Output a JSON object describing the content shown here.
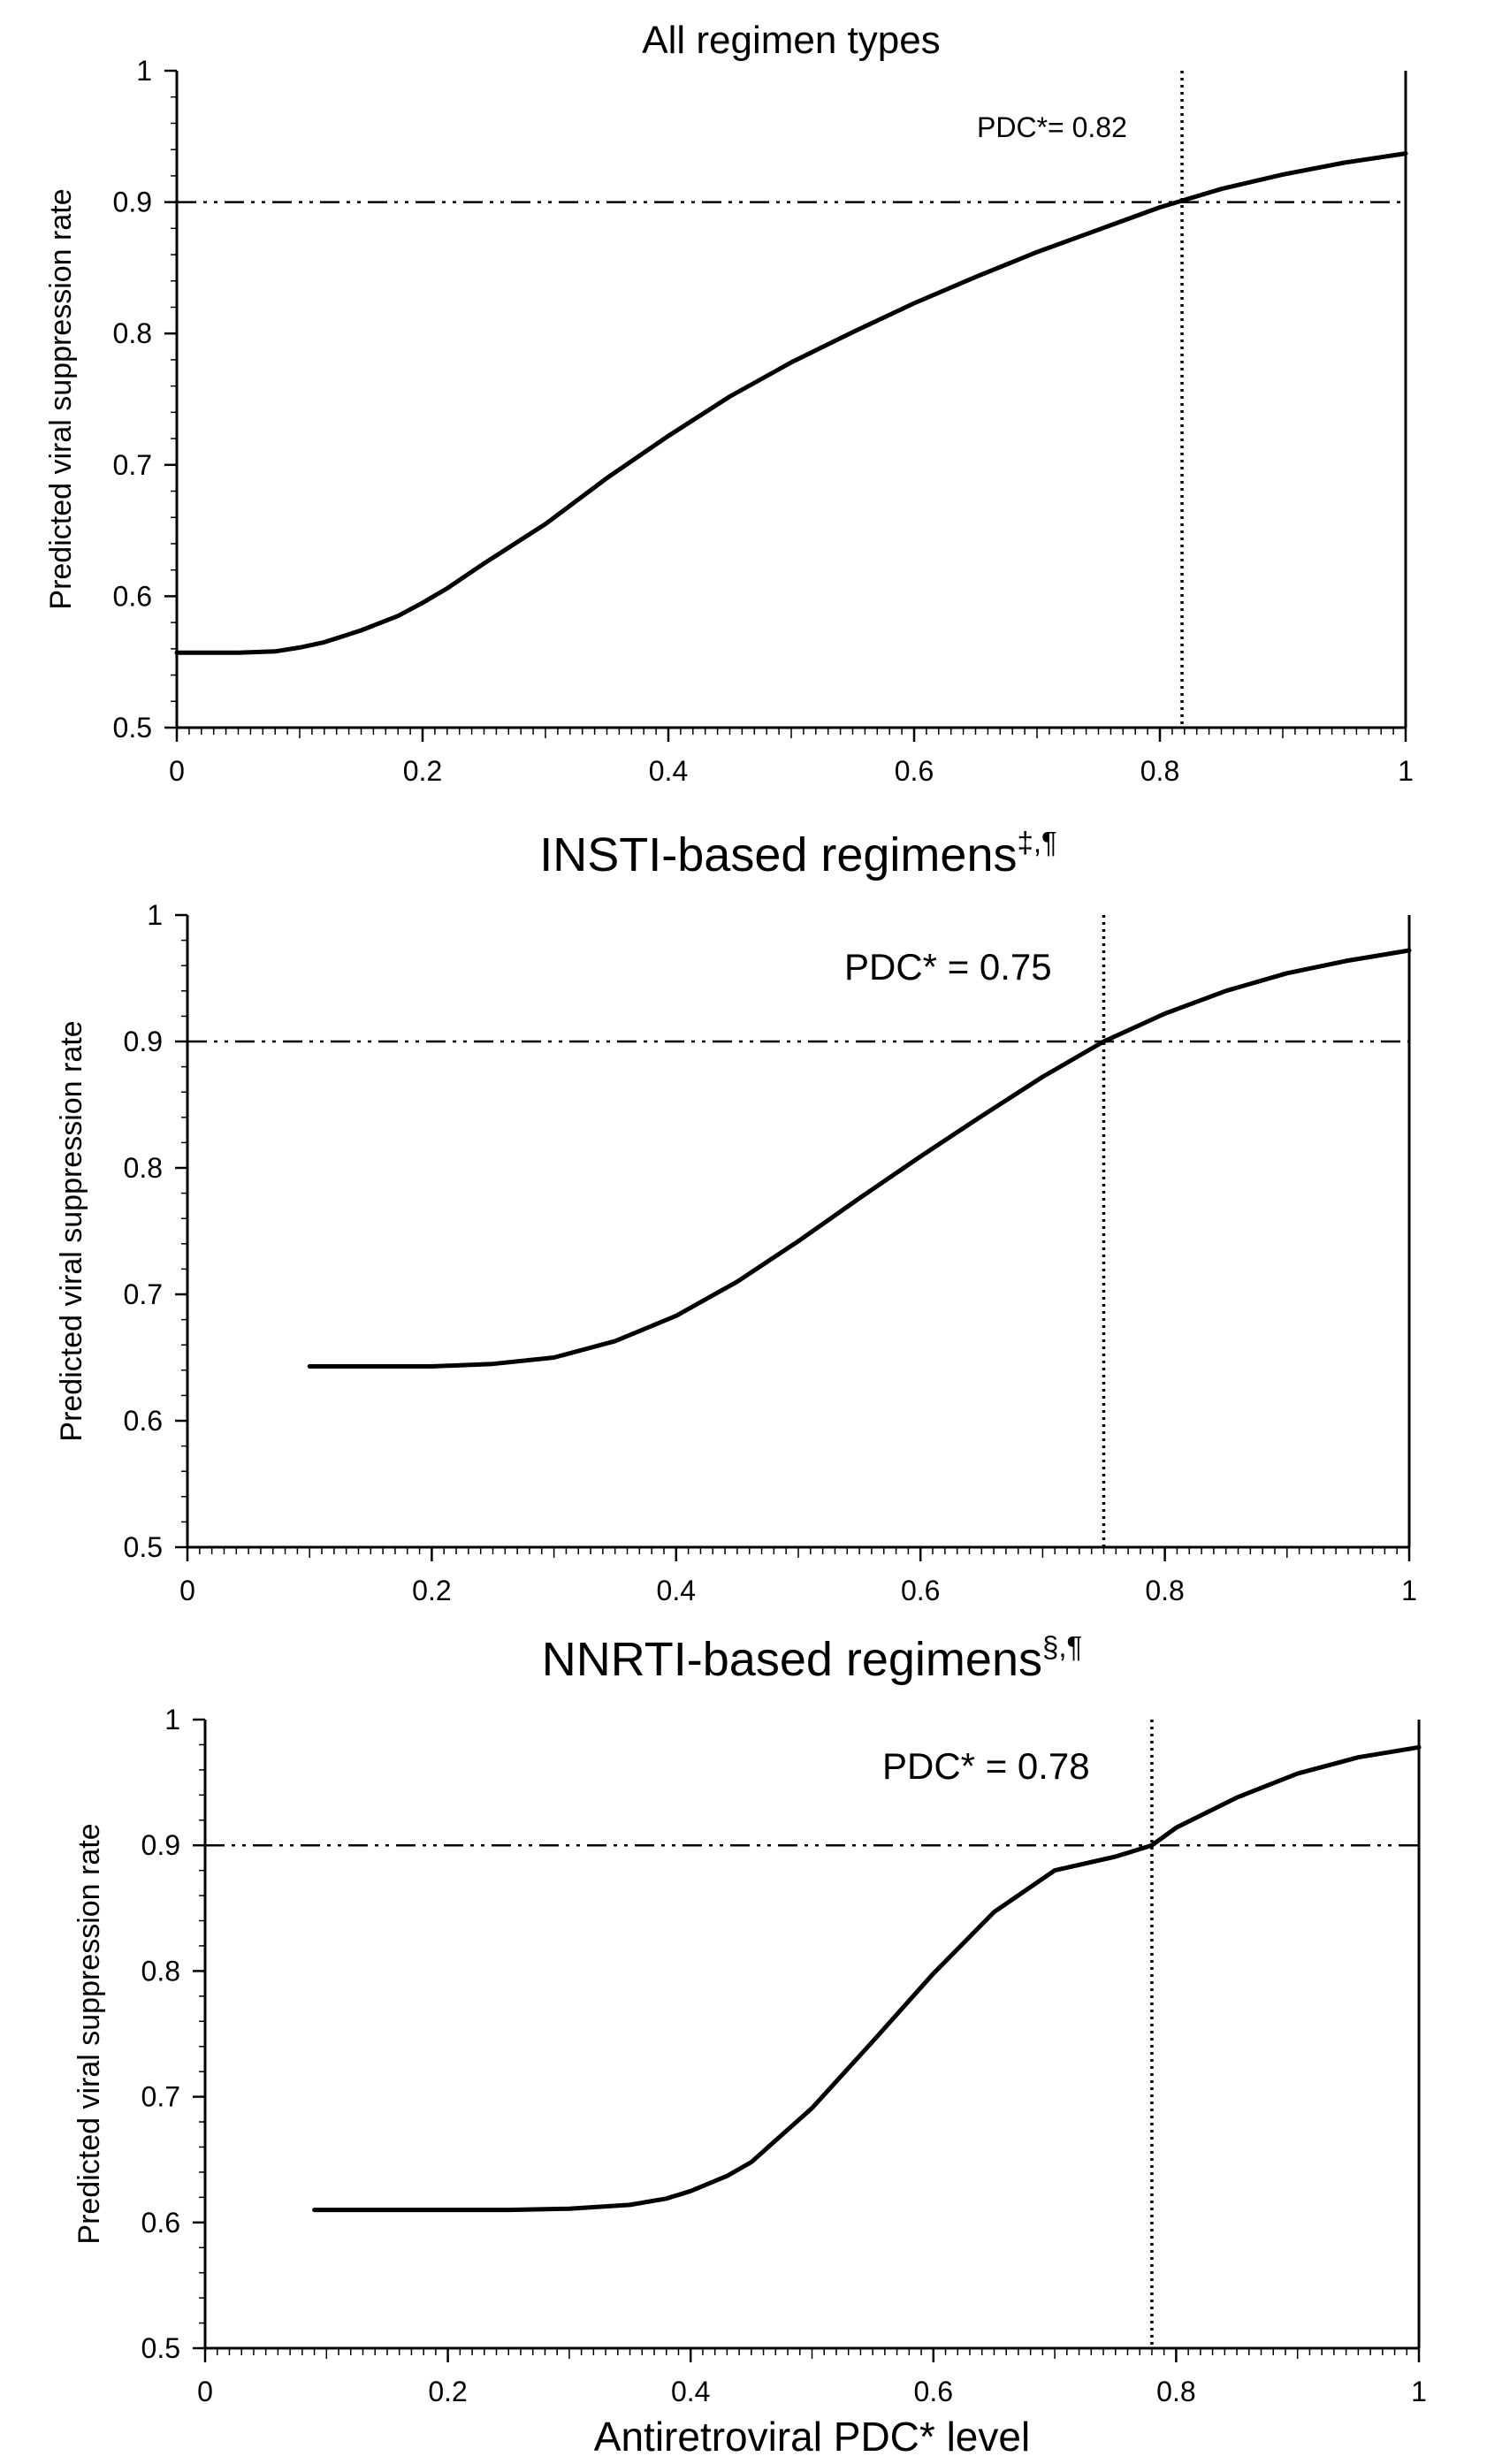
{
  "chart_data": [
    {
      "type": "line",
      "title": "All regimen types",
      "title_sup": "",
      "xlabel": "",
      "ylabel": "Predicted viral suppression rate",
      "xlim": [
        0,
        1
      ],
      "ylim": [
        0.5,
        1
      ],
      "x_ticks": [
        "0",
        "0.2",
        "0.4",
        "0.6",
        "0.8",
        "1"
      ],
      "y_ticks": [
        "0.5",
        "0.6",
        "0.7",
        "0.8",
        "0.9",
        "1"
      ],
      "threshold_y": 0.9,
      "pdc_x": 0.818,
      "annotation": "PDC*= 0.82",
      "grid": false,
      "series": [
        {
          "x": [
            0,
            0.05,
            0.08,
            0.1,
            0.12,
            0.15,
            0.18,
            0.2,
            0.22,
            0.25,
            0.28,
            0.3,
            0.35,
            0.4,
            0.45,
            0.5,
            0.55,
            0.6,
            0.65,
            0.7,
            0.75,
            0.8,
            0.85,
            0.9,
            0.95,
            1.0
          ],
          "y": [
            0.557,
            0.557,
            0.558,
            0.561,
            0.565,
            0.574,
            0.585,
            0.595,
            0.606,
            0.625,
            0.643,
            0.655,
            0.69,
            0.722,
            0.752,
            0.778,
            0.801,
            0.823,
            0.843,
            0.862,
            0.879,
            0.896,
            0.91,
            0.921,
            0.93,
            0.937
          ]
        }
      ]
    },
    {
      "type": "line",
      "title": "INSTI-based regimens",
      "title_sup": "‡,¶",
      "xlabel": "",
      "ylabel": "Predicted viral suppression rate",
      "xlim": [
        0,
        1
      ],
      "ylim": [
        0.5,
        1
      ],
      "x_ticks": [
        "0",
        "0.2",
        "0.4",
        "0.6",
        "0.8",
        "1"
      ],
      "y_ticks": [
        "0.5",
        "0.6",
        "0.7",
        "0.8",
        "0.9",
        "1"
      ],
      "threshold_y": 0.9,
      "pdc_x": 0.75,
      "annotation": "PDC* = 0.75",
      "grid": false,
      "series": [
        {
          "x": [
            0.1,
            0.15,
            0.2,
            0.25,
            0.3,
            0.35,
            0.4,
            0.45,
            0.5,
            0.55,
            0.6,
            0.65,
            0.7,
            0.75,
            0.8,
            0.85,
            0.9,
            0.95,
            1.0
          ],
          "y": [
            0.643,
            0.643,
            0.643,
            0.645,
            0.65,
            0.663,
            0.683,
            0.71,
            0.742,
            0.776,
            0.809,
            0.841,
            0.872,
            0.9,
            0.922,
            0.94,
            0.954,
            0.964,
            0.972
          ]
        }
      ]
    },
    {
      "type": "line",
      "title": "NNRTI-based regimens",
      "title_sup": "§,¶",
      "xlabel": "Antiretroviral PDC* level",
      "ylabel": "Predicted viral suppression rate",
      "xlim": [
        0,
        1
      ],
      "ylim": [
        0.5,
        1
      ],
      "x_ticks": [
        "0",
        "0.2",
        "0.4",
        "0.6",
        "0.8",
        "1"
      ],
      "y_ticks": [
        "0.5",
        "0.6",
        "0.7",
        "0.8",
        "0.9",
        "1"
      ],
      "threshold_y": 0.9,
      "pdc_x": 0.78,
      "annotation": "PDC* = 0.78",
      "grid": false,
      "series": [
        {
          "x": [
            0.09,
            0.15,
            0.2,
            0.25,
            0.3,
            0.35,
            0.38,
            0.4,
            0.43,
            0.45,
            0.5,
            0.55,
            0.6,
            0.65,
            0.7,
            0.75,
            0.78,
            0.8,
            0.85,
            0.9,
            0.95,
            1.0
          ],
          "y": [
            0.61,
            0.61,
            0.61,
            0.61,
            0.611,
            0.614,
            0.619,
            0.625,
            0.637,
            0.648,
            0.691,
            0.744,
            0.798,
            0.847,
            0.88,
            0.891,
            0.9,
            0.914,
            0.938,
            0.957,
            0.97,
            0.978
          ]
        }
      ]
    }
  ]
}
